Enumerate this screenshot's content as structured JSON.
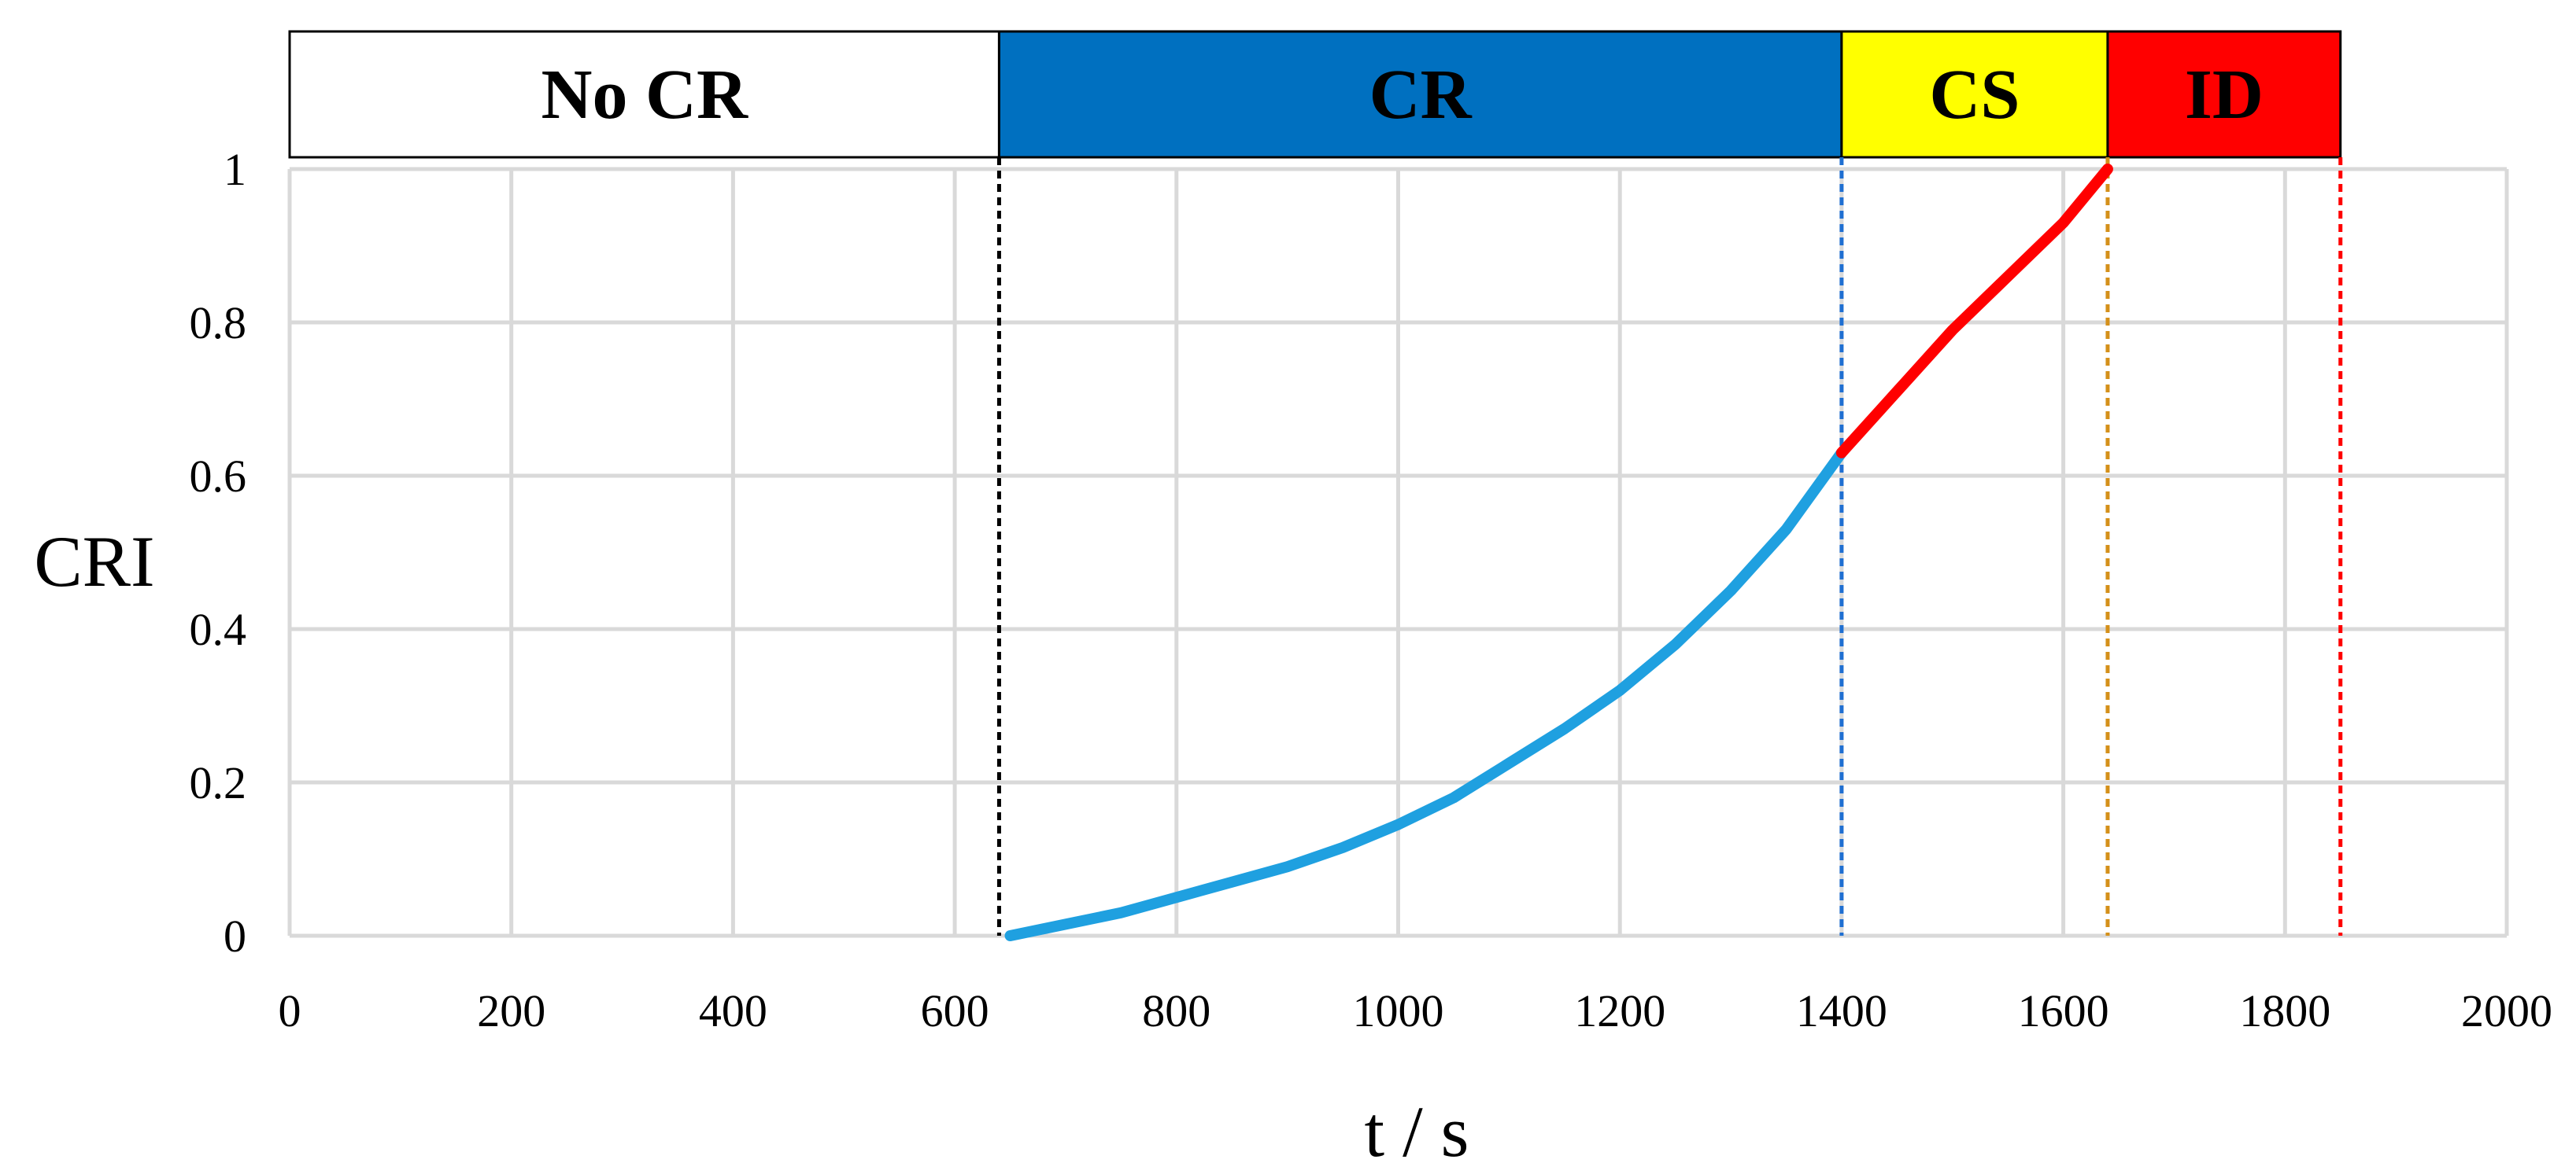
{
  "chart_data": {
    "type": "line",
    "xlabel": "t / s",
    "ylabel": "CRI",
    "xlim": [
      0,
      2000
    ],
    "ylim": [
      0,
      1
    ],
    "x_ticks": [
      0,
      200,
      400,
      600,
      800,
      1000,
      1200,
      1400,
      1600,
      1800,
      2000
    ],
    "y_ticks": [
      0,
      0.2,
      0.4,
      0.6,
      0.8,
      1
    ],
    "y_tick_labels": [
      "0",
      "0.2",
      "0.4",
      "0.6",
      "0.8",
      "1"
    ],
    "grid": true,
    "phases": [
      {
        "label": "No CR",
        "start": 0,
        "end": 640,
        "color": "#ffffff"
      },
      {
        "label": "CR",
        "start": 640,
        "end": 1400,
        "color": "#0070c0"
      },
      {
        "label": "CS",
        "start": 1400,
        "end": 1640,
        "color": "#ffff00"
      },
      {
        "label": "ID",
        "start": 1640,
        "end": 1850,
        "color": "#ff0000"
      }
    ],
    "boundaries": [
      {
        "x": 640,
        "color": "#000000"
      },
      {
        "x": 1400,
        "color": "#1f6fd1"
      },
      {
        "x": 1640,
        "color": "#d4901a"
      },
      {
        "x": 1850,
        "color": "#ff0000"
      }
    ],
    "series": [
      {
        "color": "#1fa0e0",
        "x": [
          650,
          700,
          750,
          800,
          850,
          900,
          950,
          1000,
          1050,
          1100,
          1150,
          1200,
          1250,
          1300,
          1350,
          1400
        ],
        "values": [
          0.0,
          0.015,
          0.03,
          0.05,
          0.07,
          0.09,
          0.115,
          0.145,
          0.18,
          0.225,
          0.27,
          0.32,
          0.38,
          0.45,
          0.53,
          0.63
        ]
      },
      {
        "color": "#ff0000",
        "x": [
          1400,
          1450,
          1500,
          1550,
          1600,
          1640
        ],
        "values": [
          0.63,
          0.71,
          0.79,
          0.86,
          0.93,
          1.0
        ]
      }
    ]
  }
}
